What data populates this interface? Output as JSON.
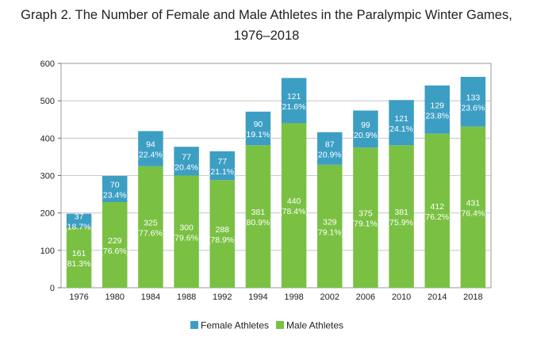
{
  "chart_data": {
    "type": "bar",
    "stacked": true,
    "title_lines": [
      "Graph 2. The Number of Female and Male Athletes in the Paralympic Winter Games,",
      "1976–2018"
    ],
    "xlabel": "",
    "ylabel": "",
    "ylim": [
      0,
      600
    ],
    "yticks": [
      0,
      100,
      200,
      300,
      400,
      500,
      600
    ],
    "grid": true,
    "legend_position": "bottom-center",
    "categories": [
      "1976",
      "1980",
      "1984",
      "1988",
      "1992",
      "1994",
      "1998",
      "2002",
      "2006",
      "2010",
      "2014",
      "2018"
    ],
    "series": [
      {
        "name": "Male Athletes",
        "color": "#7ac143",
        "values": [
          161,
          229,
          325,
          300,
          288,
          381,
          440,
          329,
          375,
          381,
          412,
          431
        ],
        "percent_labels": [
          "(81.3%)",
          "(76.6%)",
          "(77.6%)",
          "(79.6%)",
          "(78.9%)",
          "(80.9%)",
          "(78.4%)",
          "(79.1%)",
          "(79.1%)",
          "(75.9%)",
          "(76.2%)",
          "(76.4%)"
        ]
      },
      {
        "name": "Female Athletes",
        "color": "#3d9ec4",
        "values": [
          37,
          70,
          94,
          77,
          77,
          90,
          121,
          87,
          99,
          121,
          129,
          133
        ],
        "percent_labels": [
          "(18.7%)",
          "(23.4%)",
          "(22.4%)",
          "(20.4%)",
          "(21.1%)",
          "(19.1%)",
          "(21.6%)",
          "(20.9%)",
          "(20.9%)",
          "(24.1%)",
          "(23.8%)",
          "(23.6%)"
        ]
      }
    ],
    "legend": [
      {
        "name": "Female Athletes",
        "color": "#3d9ec4"
      },
      {
        "name": "Male Athletes",
        "color": "#7ac143"
      }
    ]
  }
}
